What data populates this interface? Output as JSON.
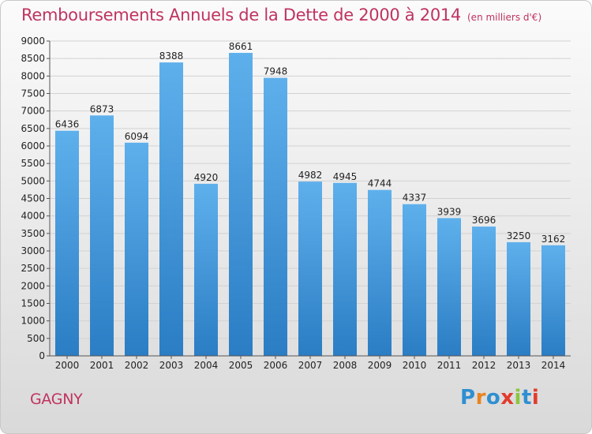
{
  "header": {
    "title": "Remboursements Annuels de la Dette de 2000 à 2014",
    "subtitle": "(en milliers d'€)"
  },
  "footer": {
    "commune": "GAGNY",
    "logo": "Proxiti"
  },
  "colors": {
    "title": "#c0335f",
    "bar_top": "#5eb0ec",
    "bar_bottom": "#2b7dc4",
    "logo_letters": [
      "#2f8fd1",
      "#e8831f",
      "#2f8fd1",
      "#e23b2e",
      "#8cc63f",
      "#2f8fd1",
      "#e23b2e"
    ]
  },
  "chart_data": {
    "type": "bar",
    "title": "Remboursements Annuels de la Dette de 2000 à 2014",
    "subtitle": "(en milliers d'€)",
    "xlabel": "",
    "ylabel": "",
    "categories": [
      "2000",
      "2001",
      "2002",
      "2003",
      "2004",
      "2005",
      "2006",
      "2007",
      "2008",
      "2009",
      "2010",
      "2011",
      "2012",
      "2013",
      "2014"
    ],
    "values": [
      6436,
      6873,
      6094,
      8388,
      4920,
      8661,
      7948,
      4982,
      4945,
      4744,
      4337,
      3939,
      3696,
      3250,
      3162
    ],
    "data_labels": [
      "6436",
      "6873",
      "6094",
      "8388",
      "4920",
      "8661",
      "7948",
      "4982",
      "4945",
      "4744",
      "4337",
      "3939",
      "3696",
      "3250",
      "3162"
    ],
    "ylim": [
      0,
      9000
    ],
    "yticks": [
      "0",
      "500",
      "1000",
      "1500",
      "2000",
      "2500",
      "3000",
      "3500",
      "4000",
      "4500",
      "5000",
      "5500",
      "6000",
      "6500",
      "7000",
      "7500",
      "8000",
      "8500",
      "9000"
    ],
    "grid": true,
    "legend": "none"
  }
}
